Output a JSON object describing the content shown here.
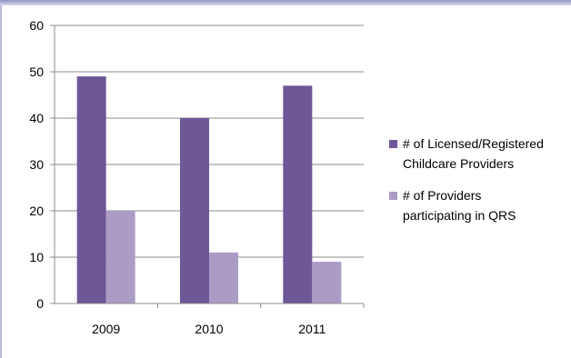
{
  "chart_data": {
    "type": "bar",
    "categories": [
      "2009",
      "2010",
      "2011"
    ],
    "series": [
      {
        "name": "# of Licensed/Registered Childcare Providers",
        "legend_lines": [
          "# of Licensed/Registered",
          "Childcare Providers"
        ],
        "values": [
          49,
          40,
          47
        ],
        "color": "#6e5796"
      },
      {
        "name": "# of Providers participating in QRS",
        "legend_lines": [
          "# of Providers",
          "participating in QRS"
        ],
        "values": [
          20,
          11,
          9
        ],
        "color": "#ab9cc6"
      }
    ],
    "yticks": [
      "0",
      "10",
      "20",
      "30",
      "40",
      "50",
      "60"
    ],
    "ylim": [
      0,
      60
    ],
    "grid": true,
    "legend_position": "right",
    "title": "",
    "xlabel": "",
    "ylabel": ""
  },
  "colors": {
    "gridline": "#8c8c8c",
    "axis": "#8c8c8c",
    "frame_accent": "#8f95c4"
  }
}
